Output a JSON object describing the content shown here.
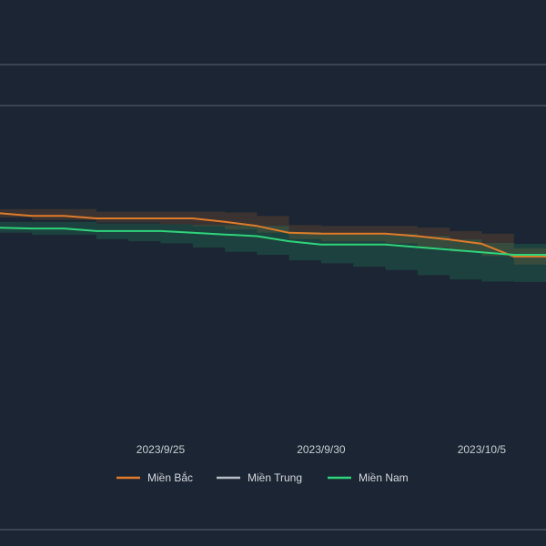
{
  "chart_data": {
    "type": "line",
    "x_ticks": [
      "2023/9/25",
      "2023/9/30",
      "2023/10/5"
    ],
    "x_range": [
      "2023-09-20",
      "2023-10-07"
    ],
    "y_range": [
      0,
      100
    ],
    "grid": true,
    "legend_position": "bottom",
    "series": [
      {
        "name": "Miền Bắc",
        "color": "#e07b2a",
        "x": [
          "2023-09-20",
          "2023-09-21",
          "2023-09-22",
          "2023-09-23",
          "2023-09-24",
          "2023-09-25",
          "2023-09-26",
          "2023-09-27",
          "2023-09-28",
          "2023-09-29",
          "2023-09-30",
          "2023-10-01",
          "2023-10-02",
          "2023-10-03",
          "2023-10-04",
          "2023-10-05",
          "2023-10-06",
          "2023-10-07"
        ],
        "y": [
          74.6,
          74.0,
          74.0,
          73.4,
          73.4,
          73.4,
          73.4,
          72.6,
          71.6,
          70.0,
          69.8,
          69.8,
          69.8,
          69.2,
          68.4,
          67.4,
          64.4,
          64.4
        ],
        "band_lower": [
          73.6,
          73.0,
          73.0,
          72.4,
          72.4,
          72.0,
          71.5,
          70.8,
          70.0,
          68.5,
          68.0,
          68.0,
          67.5,
          66.5,
          65.5,
          64.5,
          62.5,
          62.5
        ],
        "band_upper": [
          75.6,
          75.6,
          75.6,
          75.0,
          75.0,
          75.0,
          75.0,
          74.8,
          74.0,
          71.8,
          71.6,
          71.6,
          71.6,
          71.2,
          70.4,
          69.8,
          66.4,
          66.4
        ]
      },
      {
        "name": "Miền Trung",
        "color": "#b9bec6",
        "x": [],
        "y": []
      },
      {
        "name": "Miền Nam",
        "color": "#2ed47a",
        "x": [
          "2023-09-20",
          "2023-09-21",
          "2023-09-22",
          "2023-09-23",
          "2023-09-24",
          "2023-09-25",
          "2023-09-26",
          "2023-09-27",
          "2023-09-28",
          "2023-09-29",
          "2023-09-30",
          "2023-10-01",
          "2023-10-02",
          "2023-10-03",
          "2023-10-04",
          "2023-10-05",
          "2023-10-06",
          "2023-10-07"
        ],
        "y": [
          71.2,
          71.0,
          71.0,
          70.4,
          70.4,
          70.4,
          70.0,
          69.6,
          69.2,
          68.0,
          67.2,
          67.2,
          67.2,
          66.6,
          66.0,
          65.4,
          64.8,
          64.8
        ],
        "band_lower": [
          70.0,
          69.5,
          69.5,
          68.5,
          68.0,
          67.5,
          66.5,
          65.5,
          64.8,
          63.5,
          62.8,
          62.0,
          61.2,
          60.0,
          59.0,
          58.5,
          58.4,
          58.4
        ],
        "band_upper": [
          72.6,
          72.6,
          72.6,
          72.2,
          72.2,
          72.0,
          71.8,
          71.8,
          71.6,
          70.2,
          69.8,
          69.8,
          69.8,
          69.2,
          68.4,
          67.6,
          67.4,
          67.4
        ]
      }
    ]
  }
}
